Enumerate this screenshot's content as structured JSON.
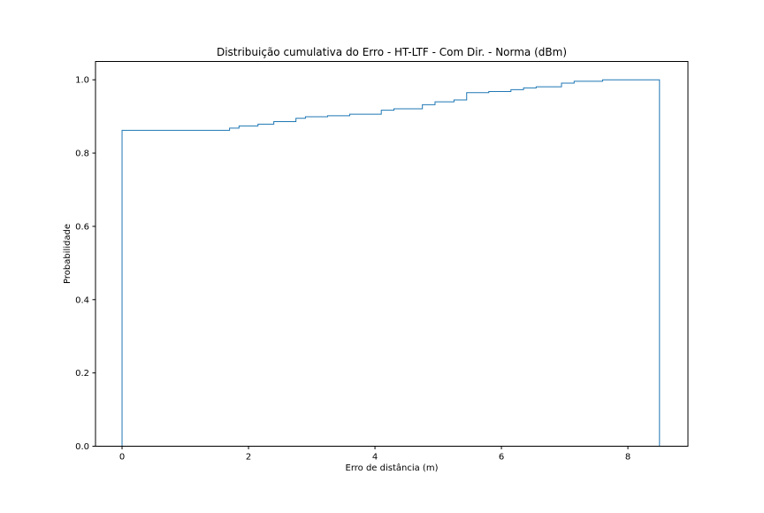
{
  "chart_data": {
    "type": "line",
    "drawstyle": "step-post (empirical CDF histogram outline)",
    "title": "Distribuição cumulativa do Erro - HT-LTF - Com Dir. - Norma (dBm)",
    "xlabel": "Erro de distância (m)",
    "ylabel": "Probabilidade",
    "xlim": [
      -0.42,
      8.95
    ],
    "ylim": [
      0.0,
      1.05
    ],
    "x_ticks": [
      0,
      2,
      4,
      6,
      8
    ],
    "x_tick_labels": [
      "0",
      "2",
      "4",
      "6",
      "8"
    ],
    "y_ticks": [
      0.0,
      0.2,
      0.4,
      0.6,
      0.8,
      1.0
    ],
    "y_tick_labels": [
      "0.0",
      "0.2",
      "0.4",
      "0.6",
      "0.8",
      "1.0"
    ],
    "grid": false,
    "series": [
      {
        "color": "#1f77b4",
        "x": [
          0.0,
          1.7,
          1.85,
          2.15,
          2.4,
          2.75,
          2.9,
          3.25,
          3.6,
          4.1,
          4.3,
          4.75,
          4.95,
          5.25,
          5.45,
          5.8,
          6.15,
          6.35,
          6.55,
          6.95,
          7.15,
          7.6,
          8.5
        ],
        "y": [
          0.862,
          0.868,
          0.874,
          0.879,
          0.886,
          0.895,
          0.899,
          0.902,
          0.906,
          0.917,
          0.921,
          0.932,
          0.94,
          0.945,
          0.965,
          0.968,
          0.973,
          0.978,
          0.981,
          0.991,
          0.996,
          1.0,
          1.0
        ]
      }
    ]
  }
}
